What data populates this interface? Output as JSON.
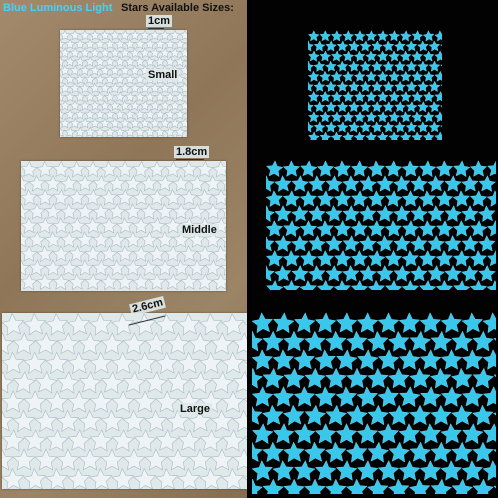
{
  "header": {
    "title_colored": "Blue Luminous Light",
    "title_rest": "Stars Available Sizes:"
  },
  "sizes": [
    {
      "name": "Small",
      "dimension": "1cm"
    },
    {
      "name": "Middle",
      "dimension": "1.8cm"
    },
    {
      "name": "Large",
      "dimension": "2.6cm"
    }
  ],
  "colors": {
    "sheet": "#dfe9ea",
    "star_outline": "#aab8c4",
    "glow_star": "#39c8ec",
    "background_dark": "#020202",
    "board": "#9a8163"
  }
}
